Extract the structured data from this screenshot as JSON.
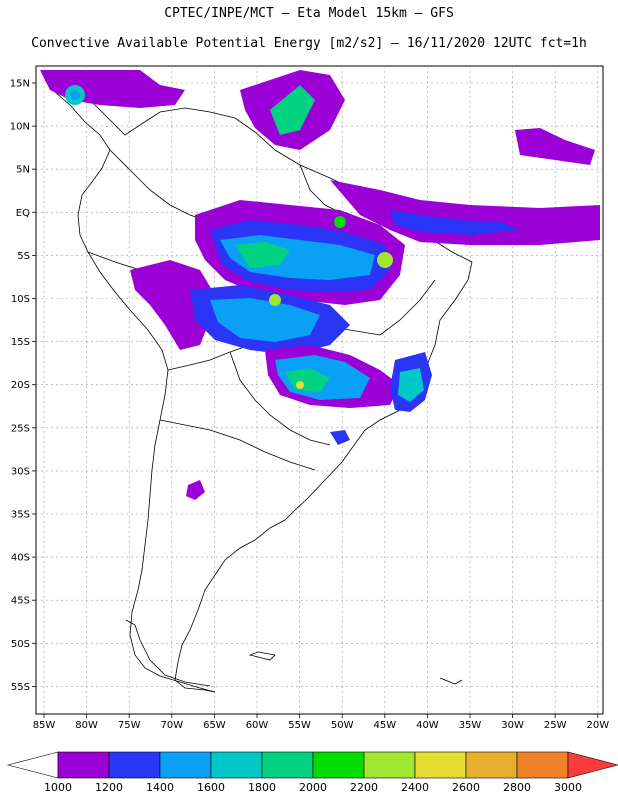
{
  "title_line1": "CPTEC/INPE/MCT –  Eta Model 15km – GFS",
  "title_line2": "Convective Available Potential Energy [m2/s2] – 16/11/2020 12UTC fct=1h",
  "lat_labels": [
    "15N",
    "10N",
    "5N",
    "EQ",
    "5S",
    "10S",
    "15S",
    "20S",
    "25S",
    "30S",
    "35S",
    "40S",
    "45S",
    "50S",
    "55S"
  ],
  "lon_labels": [
    "85W",
    "80W",
    "75W",
    "70W",
    "65W",
    "60W",
    "55W",
    "50W",
    "45W",
    "40W",
    "35W",
    "30W",
    "25W",
    "20W"
  ],
  "colorbar": {
    "labels": [
      "1000",
      "1200",
      "1400",
      "1600",
      "1800",
      "2000",
      "2200",
      "2400",
      "2600",
      "2800",
      "3000"
    ],
    "colors": [
      "#9b00d6",
      "#2a35f5",
      "#0aa0f5",
      "#00c8c8",
      "#00d282",
      "#00dc00",
      "#a0e632",
      "#e6dc32",
      "#e6af2d",
      "#f08228"
    ],
    "over_color": "#fa3c3c",
    "under_color": "#ffffff"
  },
  "legend": {
    "colors": {
      "purple": "#9b00d6",
      "blue": "#2a35f5",
      "lightblue": "#0aa0f5",
      "cyan": "#00c8c8",
      "teal": "#00d282",
      "green": "#00dc00",
      "lime": "#a0e632",
      "yellow": "#e6dc32"
    }
  }
}
